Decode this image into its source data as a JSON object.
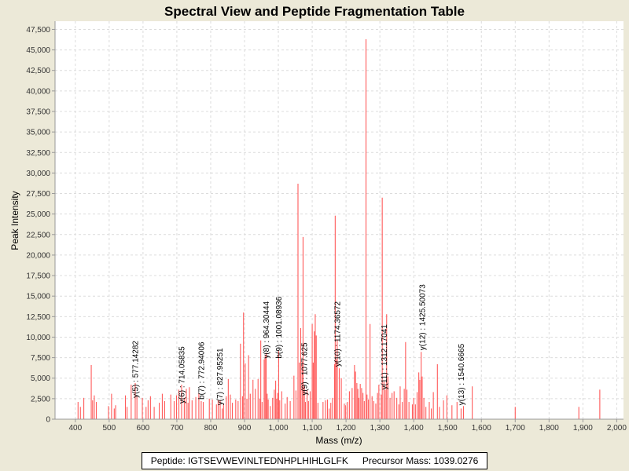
{
  "chart_data": {
    "type": "bar",
    "title": "Spectral View and Peptide Fragmentation Table",
    "xlabel": "Mass (m/z)",
    "ylabel": "Peak Intensity",
    "xlim": [
      340,
      2020
    ],
    "ylim": [
      0,
      48500
    ],
    "x_ticks": [
      400,
      500,
      600,
      700,
      800,
      900,
      1000,
      1100,
      1200,
      1300,
      1400,
      1500,
      1600,
      1700,
      1800,
      1900,
      2000
    ],
    "x_tick_labels": [
      "400",
      "500",
      "600",
      "700",
      "800",
      "900",
      "1,000",
      "1,100",
      "1,200",
      "1,300",
      "1,400",
      "1,500",
      "1,600",
      "1,700",
      "1,800",
      "1,900",
      "2,000"
    ],
    "y_ticks": [
      0,
      2500,
      5000,
      7500,
      10000,
      12500,
      15000,
      17500,
      20000,
      22500,
      25000,
      27500,
      30000,
      32500,
      35000,
      37500,
      40000,
      42500,
      45000,
      47500
    ],
    "y_tick_labels": [
      "0",
      "2,500",
      "5,000",
      "7,500",
      "10,000",
      "12,500",
      "15,000",
      "17,500",
      "20,000",
      "22,500",
      "25,000",
      "27,500",
      "30,000",
      "32,500",
      "35,000",
      "37,500",
      "40,000",
      "42,500",
      "45,000",
      "47,500"
    ],
    "grid": true,
    "legend": "none",
    "peak_color": "#ff5a5a",
    "peaks": [
      [
        408,
        2100
      ],
      [
        415,
        1500
      ],
      [
        425,
        2600
      ],
      [
        447,
        6600
      ],
      [
        451,
        2300
      ],
      [
        456,
        2900
      ],
      [
        462,
        2100
      ],
      [
        498,
        1600
      ],
      [
        507,
        3100
      ],
      [
        515,
        1300
      ],
      [
        519,
        1700
      ],
      [
        548,
        2900
      ],
      [
        553,
        1500
      ],
      [
        565,
        4200
      ],
      [
        577,
        4400
      ],
      [
        582,
        2800
      ],
      [
        598,
        2600
      ],
      [
        609,
        1500
      ],
      [
        615,
        2300
      ],
      [
        622,
        2800
      ],
      [
        633,
        1500
      ],
      [
        648,
        2000
      ],
      [
        657,
        3100
      ],
      [
        664,
        2200
      ],
      [
        682,
        3000
      ],
      [
        692,
        2200
      ],
      [
        699,
        2900
      ],
      [
        706,
        3600
      ],
      [
        714,
        4200
      ],
      [
        722,
        2600
      ],
      [
        728,
        3700
      ],
      [
        733,
        2000
      ],
      [
        737,
        3900
      ],
      [
        745,
        2300
      ],
      [
        756,
        2700
      ],
      [
        765,
        3200
      ],
      [
        772,
        2200
      ],
      [
        778,
        2100
      ],
      [
        796,
        2500
      ],
      [
        805,
        2400
      ],
      [
        817,
        1800
      ],
      [
        822,
        2300
      ],
      [
        828,
        2300
      ],
      [
        834,
        1300
      ],
      [
        838,
        1900
      ],
      [
        846,
        2800
      ],
      [
        852,
        4900
      ],
      [
        858,
        3000
      ],
      [
        864,
        2000
      ],
      [
        874,
        2400
      ],
      [
        881,
        2200
      ],
      [
        888,
        9200
      ],
      [
        894,
        2800
      ],
      [
        897,
        13000
      ],
      [
        902,
        6800
      ],
      [
        907,
        2500
      ],
      [
        912,
        7800
      ],
      [
        917,
        3100
      ],
      [
        925,
        4800
      ],
      [
        932,
        3700
      ],
      [
        940,
        4900
      ],
      [
        945,
        2500
      ],
      [
        948,
        9600
      ],
      [
        952,
        2100
      ],
      [
        958,
        7300
      ],
      [
        961,
        7700
      ],
      [
        964,
        8100
      ],
      [
        967,
        3100
      ],
      [
        970,
        2400
      ],
      [
        976,
        1600
      ],
      [
        983,
        2600
      ],
      [
        988,
        3600
      ],
      [
        992,
        4700
      ],
      [
        995,
        2500
      ],
      [
        998,
        3200
      ],
      [
        1001,
        8300
      ],
      [
        1004,
        2300
      ],
      [
        1010,
        3400
      ],
      [
        1020,
        1900
      ],
      [
        1026,
        2700
      ],
      [
        1035,
        2200
      ],
      [
        1046,
        5300
      ],
      [
        1052,
        3500
      ],
      [
        1058,
        28700
      ],
      [
        1062,
        6900
      ],
      [
        1066,
        11100
      ],
      [
        1070,
        7000
      ],
      [
        1073,
        22200
      ],
      [
        1077,
        4000
      ],
      [
        1080,
        2100
      ],
      [
        1085,
        3500
      ],
      [
        1089,
        2200
      ],
      [
        1094,
        3400
      ],
      [
        1100,
        11600
      ],
      [
        1103,
        6900
      ],
      [
        1106,
        10700
      ],
      [
        1109,
        12800
      ],
      [
        1112,
        10200
      ],
      [
        1117,
        2000
      ],
      [
        1132,
        2100
      ],
      [
        1139,
        2300
      ],
      [
        1145,
        2400
      ],
      [
        1150,
        1300
      ],
      [
        1155,
        2000
      ],
      [
        1160,
        2600
      ],
      [
        1166,
        6700
      ],
      [
        1168,
        24800
      ],
      [
        1172,
        7300
      ],
      [
        1174,
        9700
      ],
      [
        1180,
        6200
      ],
      [
        1186,
        5000
      ],
      [
        1195,
        1900
      ],
      [
        1199,
        1700
      ],
      [
        1204,
        2100
      ],
      [
        1210,
        3400
      ],
      [
        1218,
        3800
      ],
      [
        1225,
        6600
      ],
      [
        1228,
        5800
      ],
      [
        1232,
        4400
      ],
      [
        1235,
        3700
      ],
      [
        1238,
        2600
      ],
      [
        1242,
        4300
      ],
      [
        1246,
        3800
      ],
      [
        1250,
        3200
      ],
      [
        1254,
        2200
      ],
      [
        1259,
        46300
      ],
      [
        1262,
        3000
      ],
      [
        1266,
        2400
      ],
      [
        1271,
        11600
      ],
      [
        1277,
        2800
      ],
      [
        1282,
        2200
      ],
      [
        1288,
        1900
      ],
      [
        1293,
        3200
      ],
      [
        1297,
        4200
      ],
      [
        1304,
        3000
      ],
      [
        1307,
        27000
      ],
      [
        1312,
        4600
      ],
      [
        1316,
        3600
      ],
      [
        1320,
        12800
      ],
      [
        1324,
        5200
      ],
      [
        1330,
        2600
      ],
      [
        1336,
        3200
      ],
      [
        1342,
        3400
      ],
      [
        1350,
        2600
      ],
      [
        1356,
        1800
      ],
      [
        1360,
        4000
      ],
      [
        1366,
        2100
      ],
      [
        1372,
        3700
      ],
      [
        1376,
        9400
      ],
      [
        1380,
        3600
      ],
      [
        1386,
        2100
      ],
      [
        1396,
        1800
      ],
      [
        1400,
        2600
      ],
      [
        1405,
        1800
      ],
      [
        1410,
        3300
      ],
      [
        1415,
        5700
      ],
      [
        1418,
        4800
      ],
      [
        1422,
        8200
      ],
      [
        1425,
        5200
      ],
      [
        1430,
        2600
      ],
      [
        1436,
        1500
      ],
      [
        1446,
        2100
      ],
      [
        1452,
        1300
      ],
      [
        1458,
        3300
      ],
      [
        1470,
        6700
      ],
      [
        1476,
        1500
      ],
      [
        1488,
        2300
      ],
      [
        1498,
        2900
      ],
      [
        1513,
        1700
      ],
      [
        1528,
        2100
      ],
      [
        1540,
        1300
      ],
      [
        1547,
        1600
      ],
      [
        1573,
        4000
      ],
      [
        1700,
        1500
      ],
      [
        1888,
        1500
      ],
      [
        1950,
        3600
      ]
    ],
    "annotations": [
      {
        "label": "y(5) : 577.14282",
        "x": 577,
        "base": 2600
      },
      {
        "label": "y(6) : 714.05835",
        "x": 714,
        "base": 1900
      },
      {
        "label": "b(7) : 772.94006",
        "x": 772,
        "base": 2400
      },
      {
        "label": "y(7) : 827.95251",
        "x": 827,
        "base": 1700
      },
      {
        "label": "y(8) : 964.30444",
        "x": 964,
        "base": 7400
      },
      {
        "label": "b(9) : 1001.08936",
        "x": 1001,
        "base": 7400
      },
      {
        "label": "y(9) : 1077.625",
        "x": 1077,
        "base": 2900
      },
      {
        "label": "y(10) : 1174.36572",
        "x": 1174,
        "base": 6400
      },
      {
        "label": "y(11) : 1312.17041",
        "x": 1312,
        "base": 3600
      },
      {
        "label": "y(12) : 1425.50073",
        "x": 1425,
        "base": 8400
      },
      {
        "label": "y(13) : 1540.6665",
        "x": 1540,
        "base": 1700
      }
    ]
  },
  "footer": {
    "peptide": "Peptide: IGTSEVWEVINLTEDNHPLHIHLGLFK",
    "precursor": "Precursor Mass: 1039.0276"
  }
}
